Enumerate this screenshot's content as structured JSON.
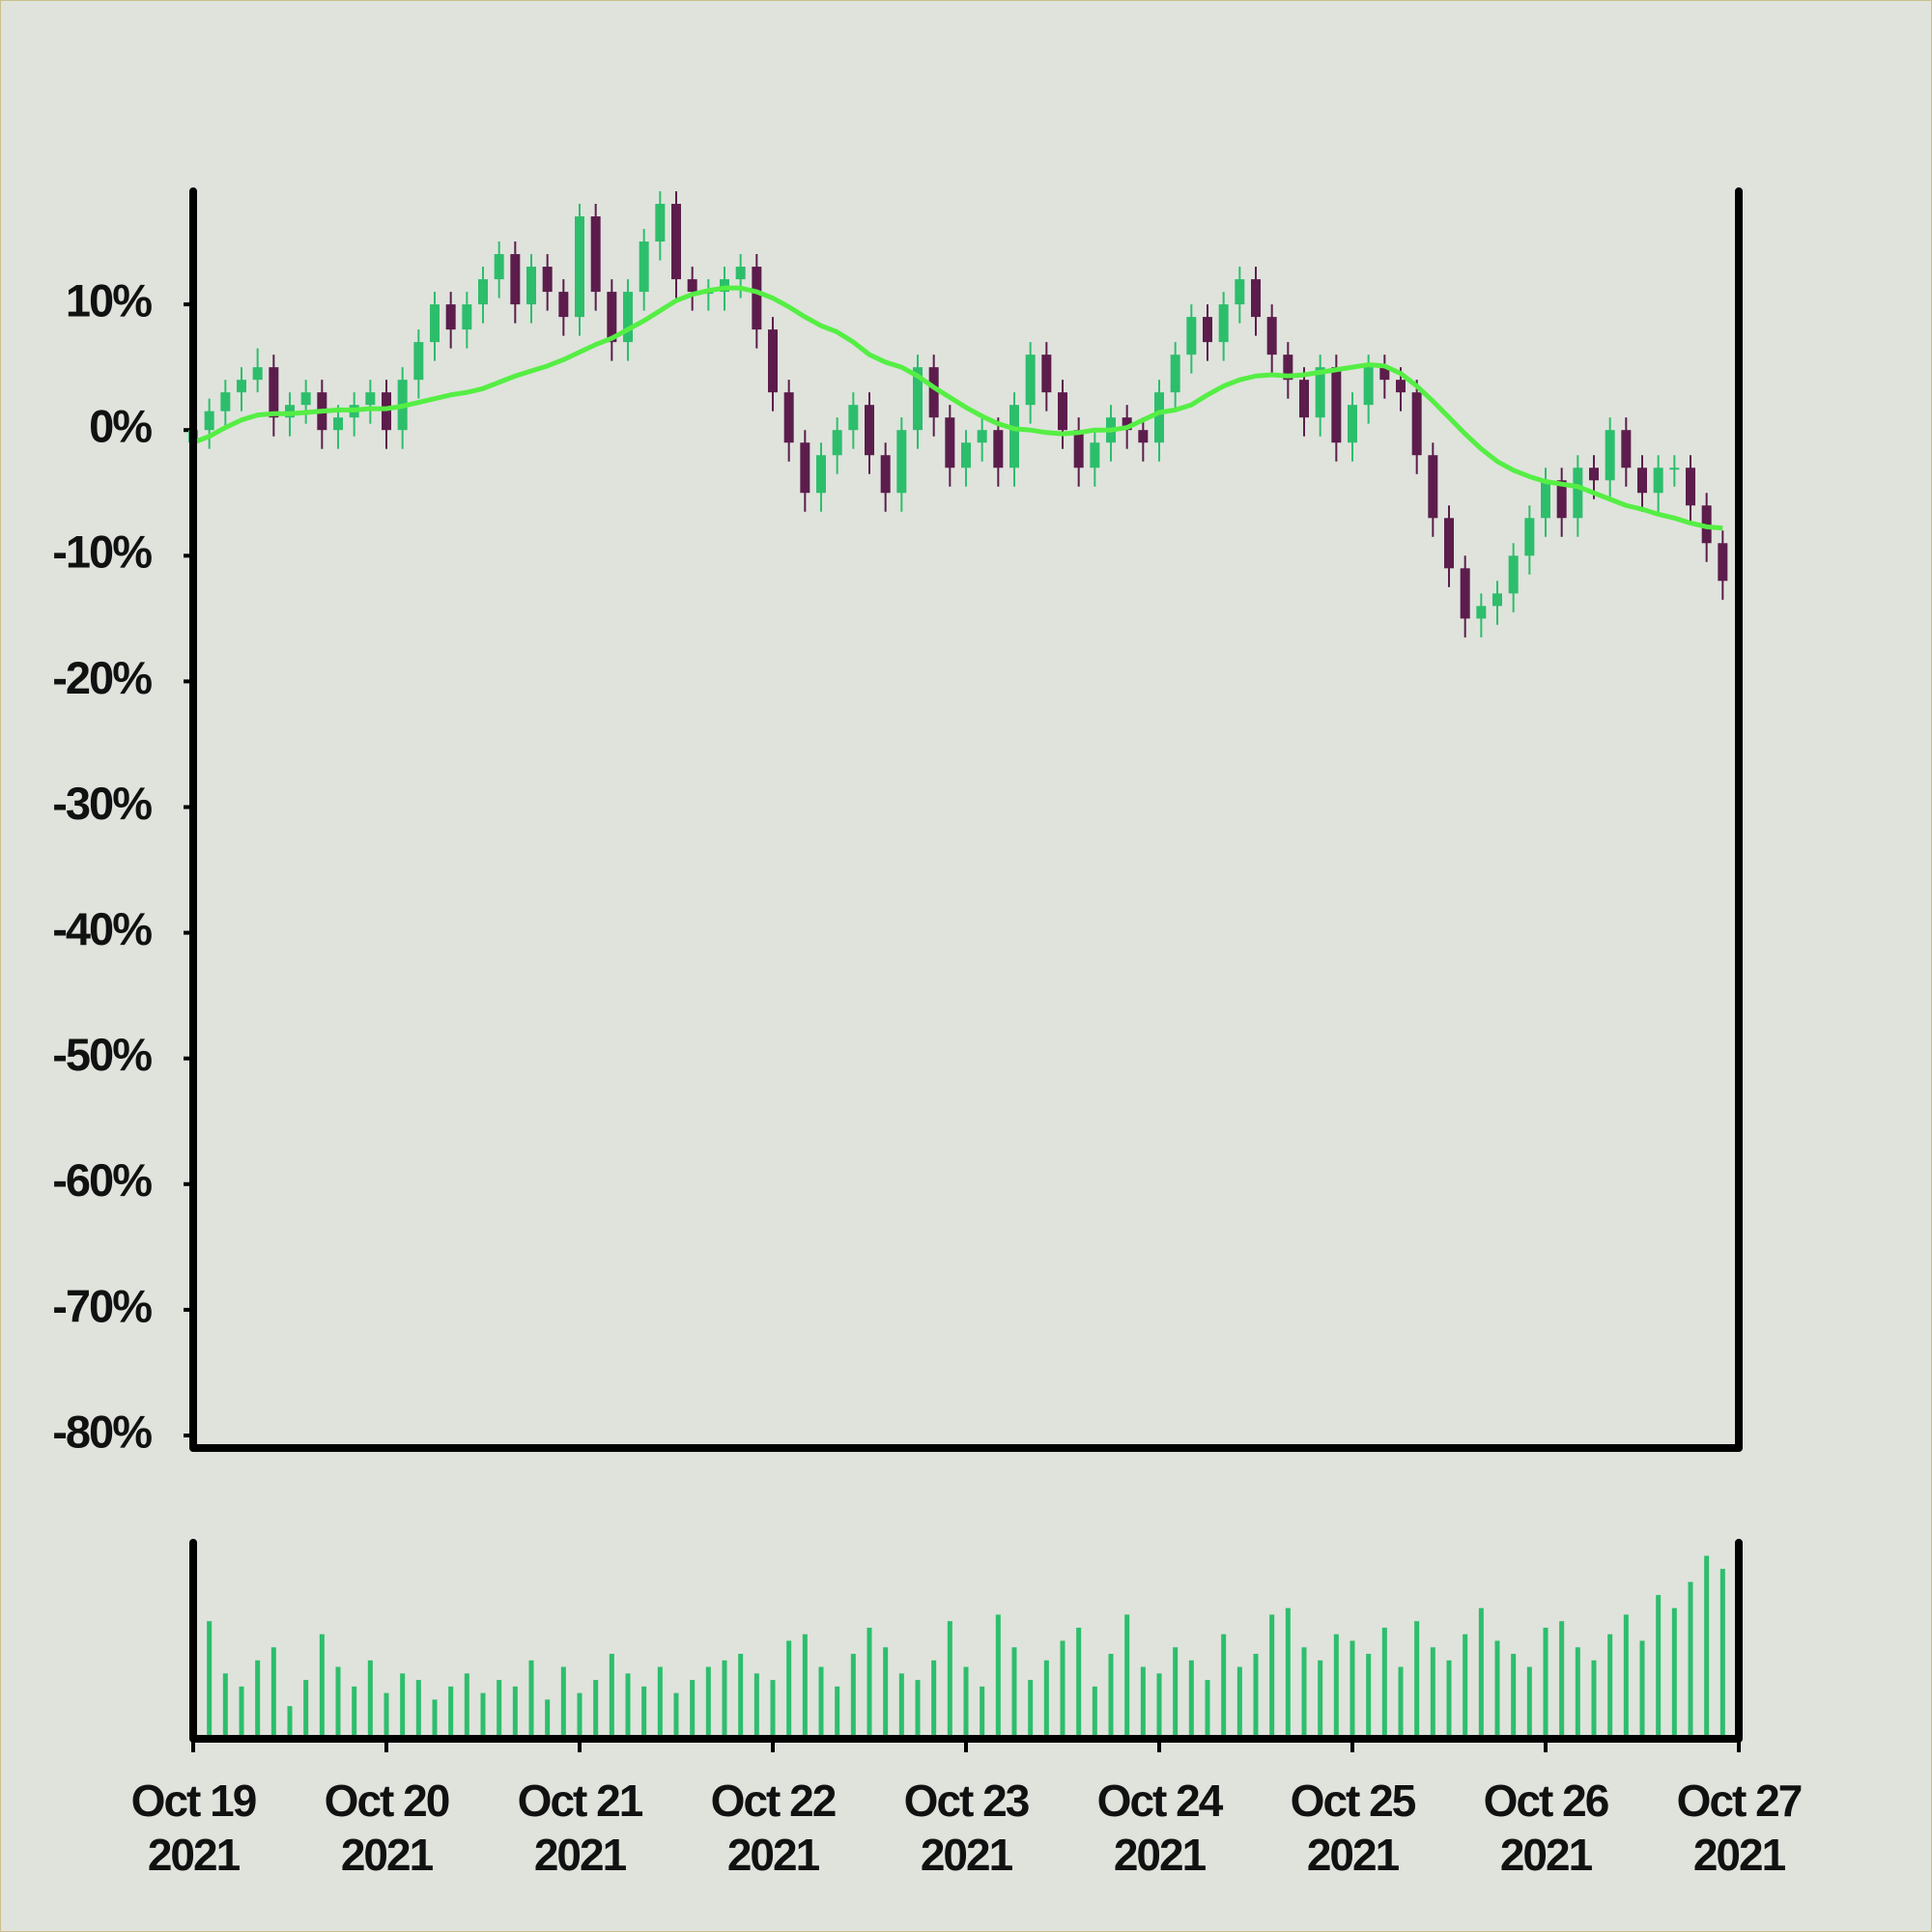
{
  "chart_data": {
    "type": "candlestick",
    "x": [
      "2021-10-19T00:00",
      "2021-10-19T02:00",
      "2021-10-19T04:00",
      "2021-10-19T06:00",
      "2021-10-19T08:00",
      "2021-10-19T10:00",
      "2021-10-19T12:00",
      "2021-10-19T14:00",
      "2021-10-19T16:00",
      "2021-10-19T18:00",
      "2021-10-19T20:00",
      "2021-10-19T22:00",
      "2021-10-20T00:00",
      "2021-10-20T02:00",
      "2021-10-20T04:00",
      "2021-10-20T06:00",
      "2021-10-20T08:00",
      "2021-10-20T10:00",
      "2021-10-20T12:00",
      "2021-10-20T14:00",
      "2021-10-20T16:00",
      "2021-10-20T18:00",
      "2021-10-20T20:00",
      "2021-10-20T22:00",
      "2021-10-21T00:00",
      "2021-10-21T02:00",
      "2021-10-21T04:00",
      "2021-10-21T06:00",
      "2021-10-21T08:00",
      "2021-10-21T10:00",
      "2021-10-21T12:00",
      "2021-10-21T14:00",
      "2021-10-21T16:00",
      "2021-10-21T18:00",
      "2021-10-21T20:00",
      "2021-10-21T22:00",
      "2021-10-22T00:00",
      "2021-10-22T02:00",
      "2021-10-22T04:00",
      "2021-10-22T06:00",
      "2021-10-22T08:00",
      "2021-10-22T10:00",
      "2021-10-22T12:00",
      "2021-10-22T14:00",
      "2021-10-22T16:00",
      "2021-10-22T18:00",
      "2021-10-22T20:00",
      "2021-10-22T22:00",
      "2021-10-23T00:00",
      "2021-10-23T02:00",
      "2021-10-23T04:00",
      "2021-10-23T06:00",
      "2021-10-23T08:00",
      "2021-10-23T10:00",
      "2021-10-23T12:00",
      "2021-10-23T14:00",
      "2021-10-23T16:00",
      "2021-10-23T18:00",
      "2021-10-23T20:00",
      "2021-10-23T22:00",
      "2021-10-24T00:00",
      "2021-10-24T02:00",
      "2021-10-24T04:00",
      "2021-10-24T06:00",
      "2021-10-24T08:00",
      "2021-10-24T10:00",
      "2021-10-24T12:00",
      "2021-10-24T14:00",
      "2021-10-24T16:00",
      "2021-10-24T18:00",
      "2021-10-24T20:00",
      "2021-10-24T22:00",
      "2021-10-25T00:00",
      "2021-10-25T02:00",
      "2021-10-25T04:00",
      "2021-10-25T06:00",
      "2021-10-25T08:00",
      "2021-10-25T10:00",
      "2021-10-25T12:00",
      "2021-10-25T14:00",
      "2021-10-25T16:00",
      "2021-10-25T18:00",
      "2021-10-25T20:00",
      "2021-10-25T22:00",
      "2021-10-26T00:00",
      "2021-10-26T02:00",
      "2021-10-26T04:00",
      "2021-10-26T06:00",
      "2021-10-26T08:00",
      "2021-10-26T10:00",
      "2021-10-26T12:00",
      "2021-10-26T14:00",
      "2021-10-26T16:00",
      "2021-10-26T18:00",
      "2021-10-26T20:00",
      "2021-10-26T22:00"
    ],
    "open": [
      -1,
      0,
      1.5,
      3,
      4,
      5,
      1,
      2,
      3,
      0,
      1,
      2,
      3,
      0,
      4,
      7,
      10,
      8,
      10,
      12,
      14,
      10,
      13,
      11,
      9,
      17,
      11,
      7,
      11,
      15,
      18,
      12,
      11,
      11,
      12,
      13,
      8,
      3,
      -1,
      -5,
      -2,
      0,
      2,
      -2,
      -5,
      0,
      5,
      1,
      -3,
      -1,
      0,
      -3,
      2,
      6,
      3,
      0,
      -3,
      -1,
      1,
      0,
      -1,
      3,
      6,
      9,
      7,
      10,
      12,
      9,
      6,
      4,
      1,
      5,
      -1,
      2,
      5,
      4,
      3,
      -2,
      -7,
      -11,
      -15,
      -14,
      -13,
      -10,
      -7,
      -4,
      -7,
      -3,
      -4,
      0,
      -3,
      -5,
      -3,
      -3,
      -6,
      -9
    ],
    "high": [
      1,
      2.5,
      4,
      5,
      6.5,
      6,
      3,
      4,
      4,
      2,
      3,
      4,
      4,
      5,
      8,
      11,
      11,
      11,
      13,
      15,
      15,
      14,
      14,
      12,
      18,
      18,
      12,
      12,
      16,
      19,
      19,
      13,
      12,
      13,
      14,
      14,
      9,
      4,
      0,
      -1,
      1,
      3,
      3,
      -1,
      1,
      6,
      6,
      2,
      0,
      1,
      1,
      3,
      7,
      7,
      4,
      1,
      0,
      2,
      2,
      1,
      4,
      7,
      10,
      10,
      11,
      13,
      13,
      10,
      7,
      5,
      6,
      6,
      3,
      6,
      6,
      5,
      4,
      -1,
      -6,
      -10,
      -13,
      -12,
      -9,
      -6,
      -3,
      -3,
      -2,
      -2,
      1,
      1,
      -2,
      -2,
      -2,
      -2,
      -5,
      -8
    ],
    "low": [
      -2.5,
      -1.5,
      0,
      1.5,
      3,
      -0.5,
      -0.5,
      0.5,
      -1.5,
      -1.5,
      -0.5,
      0.5,
      -1.5,
      -1.5,
      2.5,
      5.5,
      6.5,
      6.5,
      8.5,
      10.5,
      8.5,
      8.5,
      9.5,
      7.5,
      7.5,
      9.5,
      5.5,
      5.5,
      9.5,
      13.5,
      10.5,
      9.5,
      9.5,
      9.5,
      10.5,
      6.5,
      1.5,
      -2.5,
      -6.5,
      -6.5,
      -3.5,
      -1.5,
      -3.5,
      -6.5,
      -6.5,
      -1.5,
      -0.5,
      -4.5,
      -4.5,
      -2.5,
      -4.5,
      -4.5,
      0.5,
      1.5,
      -1.5,
      -4.5,
      -4.5,
      -2.5,
      -1.5,
      -2.5,
      -2.5,
      1.5,
      4.5,
      5.5,
      5.5,
      8.5,
      7.5,
      4.5,
      2.5,
      -0.5,
      -0.5,
      -2.5,
      -2.5,
      0.5,
      2.5,
      1.5,
      -3.5,
      -8.5,
      -12.5,
      -16.5,
      -16.5,
      -15.5,
      -14.5,
      -11.5,
      -8.5,
      -8.5,
      -8.5,
      -5.5,
      -5.5,
      -4.5,
      -6.5,
      -6.5,
      -4.5,
      -7.5,
      -10.5,
      -13.5
    ],
    "close": [
      0,
      1.5,
      3,
      4,
      5,
      1,
      2,
      3,
      0,
      1,
      2,
      3,
      0,
      4,
      7,
      10,
      8,
      10,
      12,
      14,
      10,
      13,
      11,
      9,
      17,
      11,
      7,
      11,
      15,
      18,
      12,
      11,
      11,
      12,
      13,
      8,
      3,
      -1,
      -5,
      -2,
      0,
      2,
      -2,
      -5,
      0,
      5,
      1,
      -3,
      -1,
      0,
      -3,
      2,
      6,
      3,
      0,
      -3,
      -1,
      1,
      0,
      -1,
      3,
      6,
      9,
      7,
      10,
      12,
      9,
      6,
      4,
      1,
      5,
      -1,
      2,
      5,
      4,
      3,
      -2,
      -7,
      -11,
      -15,
      -14,
      -13,
      -10,
      -7,
      -4,
      -7,
      -3,
      -4,
      0,
      -3,
      -5,
      -3,
      -3,
      -6,
      -9,
      -12
    ],
    "moving_average": [
      -1,
      -0.5,
      0.2,
      0.8,
      1.2,
      1.3,
      1.3,
      1.4,
      1.5,
      1.6,
      1.6,
      1.7,
      1.7,
      1.9,
      2.2,
      2.5,
      2.8,
      3,
      3.3,
      3.8,
      4.3,
      4.7,
      5.1,
      5.6,
      6.2,
      6.8,
      7.3,
      8,
      8.7,
      9.5,
      10.3,
      10.8,
      11.1,
      11.3,
      11.3,
      11,
      10.5,
      9.8,
      9,
      8.3,
      7.8,
      7,
      6,
      5.4,
      5,
      4.3,
      3.4,
      2.6,
      1.8,
      1.1,
      0.5,
      0.1,
      0,
      -0.2,
      -0.3,
      -0.2,
      0,
      0,
      0.2,
      0.8,
      1.4,
      1.6,
      2,
      2.8,
      3.5,
      4,
      4.3,
      4.4,
      4.3,
      4.4,
      4.6,
      4.8,
      5,
      5.2,
      5.1,
      4.5,
      3.5,
      2.3,
      1,
      -0.3,
      -1.5,
      -2.5,
      -3.2,
      -3.7,
      -4.1,
      -4.3,
      -4.5,
      -5,
      -5.5,
      -6,
      -6.3,
      -6.7,
      -7,
      -7.4,
      -7.7,
      -7.8
    ],
    "volume": [
      30,
      90,
      50,
      40,
      60,
      70,
      25,
      45,
      80,
      55,
      40,
      60,
      35,
      50,
      45,
      30,
      40,
      50,
      35,
      45,
      40,
      60,
      30,
      55,
      35,
      45,
      65,
      50,
      40,
      55,
      35,
      45,
      55,
      60,
      65,
      50,
      45,
      75,
      80,
      55,
      40,
      65,
      85,
      70,
      50,
      45,
      60,
      90,
      55,
      40,
      95,
      70,
      45,
      60,
      75,
      85,
      40,
      65,
      95,
      55,
      50,
      70,
      60,
      45,
      80,
      55,
      65,
      95,
      100,
      70,
      60,
      80,
      75,
      65,
      85,
      55,
      90,
      70,
      60,
      80,
      100,
      75,
      65,
      55,
      85,
      90,
      70,
      60,
      80,
      95,
      75,
      110,
      100,
      120,
      140,
      130
    ],
    "up_color": "#2dbe6c",
    "down_color": "#5c1d4c",
    "ma_color": "#55ee44",
    "volume_color": "#2dbe6c",
    "xlim": [
      "2021-10-19T00:00",
      "2021-10-27T00:00"
    ],
    "xticks": [
      {
        "value": "2021-10-19T00:00",
        "label": "Oct 19 2021"
      },
      {
        "value": "2021-10-20T00:00",
        "label": "Oct 20 2021"
      },
      {
        "value": "2021-10-21T00:00",
        "label": "Oct 21 2021"
      },
      {
        "value": "2021-10-22T00:00",
        "label": "Oct 22 2021"
      },
      {
        "value": "2021-10-23T00:00",
        "label": "Oct 23 2021"
      },
      {
        "value": "2021-10-24T00:00",
        "label": "Oct 24 2021"
      },
      {
        "value": "2021-10-25T00:00",
        "label": "Oct 25 2021"
      },
      {
        "value": "2021-10-26T00:00",
        "label": "Oct 26 2021"
      },
      {
        "value": "2021-10-27T00:00",
        "label": "Oct 27 2021"
      }
    ],
    "ylim": [
      -81,
      19
    ],
    "yticks": [
      {
        "value": 10,
        "label": "10%"
      },
      {
        "value": 0,
        "label": "0%"
      },
      {
        "value": -10,
        "label": "-10%"
      },
      {
        "value": -20,
        "label": "-20%"
      },
      {
        "value": -30,
        "label": "-30%"
      },
      {
        "value": -40,
        "label": "-40%"
      },
      {
        "value": -50,
        "label": "-50%"
      },
      {
        "value": -60,
        "label": "-60%"
      },
      {
        "value": -70,
        "label": "-70%"
      },
      {
        "value": -80,
        "label": "-80%"
      }
    ],
    "volume_lim": [
      0,
      150
    ]
  }
}
